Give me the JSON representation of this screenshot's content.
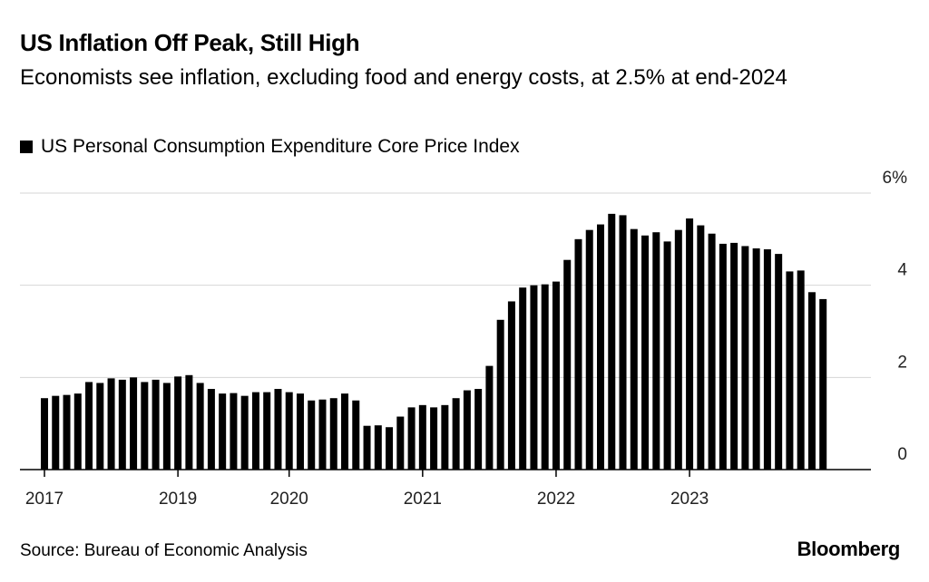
{
  "header": {
    "title": "US Inflation Off Peak, Still High",
    "subtitle": "Economists see inflation, excluding food and energy costs, at 2.5% at end-2024"
  },
  "legend": {
    "label": "US Personal Consumption Expenditure Core Price Index"
  },
  "footer": {
    "source": "Source: Bureau of Economic Analysis",
    "brand": "Bloomberg"
  },
  "colors": {
    "bar": "#000000",
    "grid": "#d6d6d6",
    "axis": "#000000"
  },
  "chart_data": {
    "type": "bar",
    "title": "US Inflation Off Peak, Still High",
    "subtitle": "Economists see inflation, excluding food and energy costs, at 2.5% at end-2024",
    "xlabel": "",
    "ylabel": "",
    "ylim": [
      0,
      6
    ],
    "yticks": [
      0,
      2,
      4,
      6
    ],
    "ytick_labels": [
      "0",
      "2",
      "4",
      "6%"
    ],
    "y_axis_side": "right",
    "grid": true,
    "legend_position": "top-left",
    "xtick_labels": [
      {
        "label": "2017",
        "index": 0
      },
      {
        "label": "2019",
        "index": 12
      },
      {
        "label": "2020",
        "index": 22
      },
      {
        "label": "2021",
        "index": 34
      },
      {
        "label": "2022",
        "index": 46
      },
      {
        "label": "2023",
        "index": 58
      }
    ],
    "series": [
      {
        "name": "US Personal Consumption Expenditure Core Price Index",
        "values": [
          1.55,
          1.6,
          1.62,
          1.65,
          1.9,
          1.88,
          1.98,
          1.95,
          2.0,
          1.9,
          1.95,
          1.88,
          2.02,
          2.05,
          1.88,
          1.75,
          1.65,
          1.66,
          1.6,
          1.68,
          1.68,
          1.75,
          1.68,
          1.65,
          1.5,
          1.52,
          1.55,
          1.65,
          1.5,
          0.95,
          0.96,
          0.92,
          1.15,
          1.35,
          1.4,
          1.35,
          1.4,
          1.55,
          1.72,
          1.75,
          2.25,
          3.25,
          3.65,
          3.95,
          4.0,
          4.02,
          4.08,
          4.55,
          5.0,
          5.2,
          5.32,
          5.55,
          5.52,
          5.22,
          5.08,
          5.15,
          4.95,
          5.2,
          5.45,
          5.3,
          5.12,
          4.9,
          4.92,
          4.85,
          4.8,
          4.78,
          4.68,
          4.3,
          4.32,
          3.85,
          3.7
        ]
      }
    ]
  }
}
